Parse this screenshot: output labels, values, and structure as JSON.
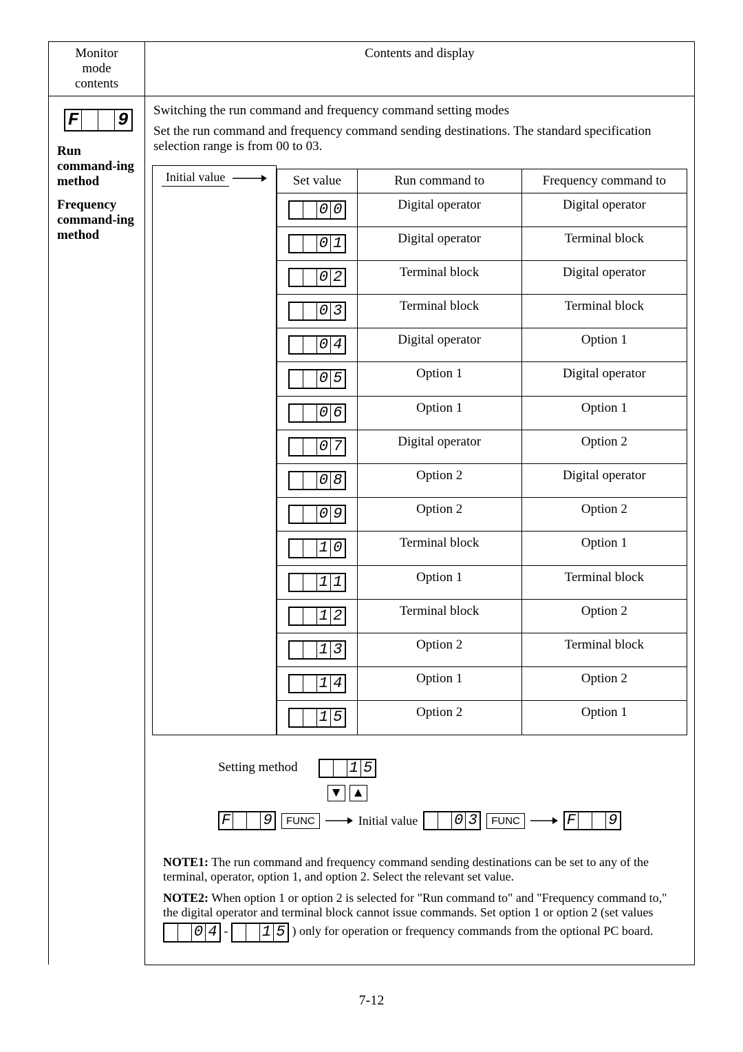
{
  "header": {
    "left_line1": "Monitor",
    "left_line2": "mode",
    "left_line3": "contents",
    "right": "Contents and display"
  },
  "f9_segment": [
    "F",
    " ",
    " ",
    "9"
  ],
  "intro": {
    "line1": "Switching the run command and frequency command setting modes",
    "line2": "Set the run command and frequency command sending destinations.  The standard specification selection range is from 00 to 03."
  },
  "left_labels": {
    "l1": "Run command-ing method",
    "l2": "Frequency command-ing method"
  },
  "initial_value_label": "Initial value",
  "table_head": {
    "setval": "Set value",
    "run": "Run command to",
    "freq": "Frequency command to"
  },
  "rows": [
    {
      "seg": [
        "0",
        "0"
      ],
      "run": "Digital operator",
      "freq": "Digital operator"
    },
    {
      "seg": [
        "0",
        "1"
      ],
      "run": "Digital operator",
      "freq": "Terminal block"
    },
    {
      "seg": [
        "0",
        "2"
      ],
      "run": "Terminal block",
      "freq": "Digital operator"
    },
    {
      "seg": [
        "0",
        "3"
      ],
      "run": "Terminal block",
      "freq": "Terminal block"
    },
    {
      "seg": [
        "0",
        "4"
      ],
      "run": "Digital operator",
      "freq": "Option 1"
    },
    {
      "seg": [
        "0",
        "5"
      ],
      "run": "Option 1",
      "freq": "Digital operator"
    },
    {
      "seg": [
        "0",
        "6"
      ],
      "run": "Option 1",
      "freq": "Option 1"
    },
    {
      "seg": [
        "0",
        "7"
      ],
      "run": "Digital operator",
      "freq": "Option 2"
    },
    {
      "seg": [
        "0",
        "8"
      ],
      "run": "Option 2",
      "freq": "Digital operator"
    },
    {
      "seg": [
        "0",
        "9"
      ],
      "run": "Option 2",
      "freq": "Option 2"
    },
    {
      "seg": [
        "1",
        "0"
      ],
      "run": "Terminal block",
      "freq": "Option 1"
    },
    {
      "seg": [
        "1",
        "1"
      ],
      "run": "Option 1",
      "freq": "Terminal block"
    },
    {
      "seg": [
        "1",
        "2"
      ],
      "run": "Terminal block",
      "freq": "Option 2"
    },
    {
      "seg": [
        "1",
        "3"
      ],
      "run": "Option 2",
      "freq": "Terminal block"
    },
    {
      "seg": [
        "1",
        "4"
      ],
      "run": "Option 1",
      "freq": "Option 2"
    },
    {
      "seg": [
        "1",
        "5"
      ],
      "run": "Option 2",
      "freq": "Option 1"
    }
  ],
  "setting_method": {
    "label": "Setting method",
    "top_seg": [
      " ",
      " ",
      "1",
      "5"
    ],
    "func": "FUNC",
    "initial_label": "Initial value",
    "left_seg": [
      "F",
      " ",
      " ",
      "9"
    ],
    "mid_seg": [
      " ",
      " ",
      "0",
      "3"
    ],
    "right_seg": [
      "F",
      " ",
      " ",
      "9"
    ]
  },
  "notes": {
    "n1_label": "NOTE1:",
    "n1_text": "The run command and frequency command sending destinations can be set to any of the terminal, operator, option 1, and option 2.  Select the relevant set value.",
    "n2_label": "NOTE2:",
    "n2_text_a": "When option 1 or option 2 is selected for \"Run command to\" and \"Frequency command to,\" the digital operator and terminal block cannot issue commands.  Set option 1 or option 2 (set values ",
    "n2_seg1": [
      " ",
      " ",
      "0",
      "4"
    ],
    "n2_dash": " - ",
    "n2_seg2": [
      " ",
      " ",
      "1",
      "5"
    ],
    "n2_text_b": " ) only for operation or frequency commands from the optional PC board."
  },
  "page_number": "7-12"
}
